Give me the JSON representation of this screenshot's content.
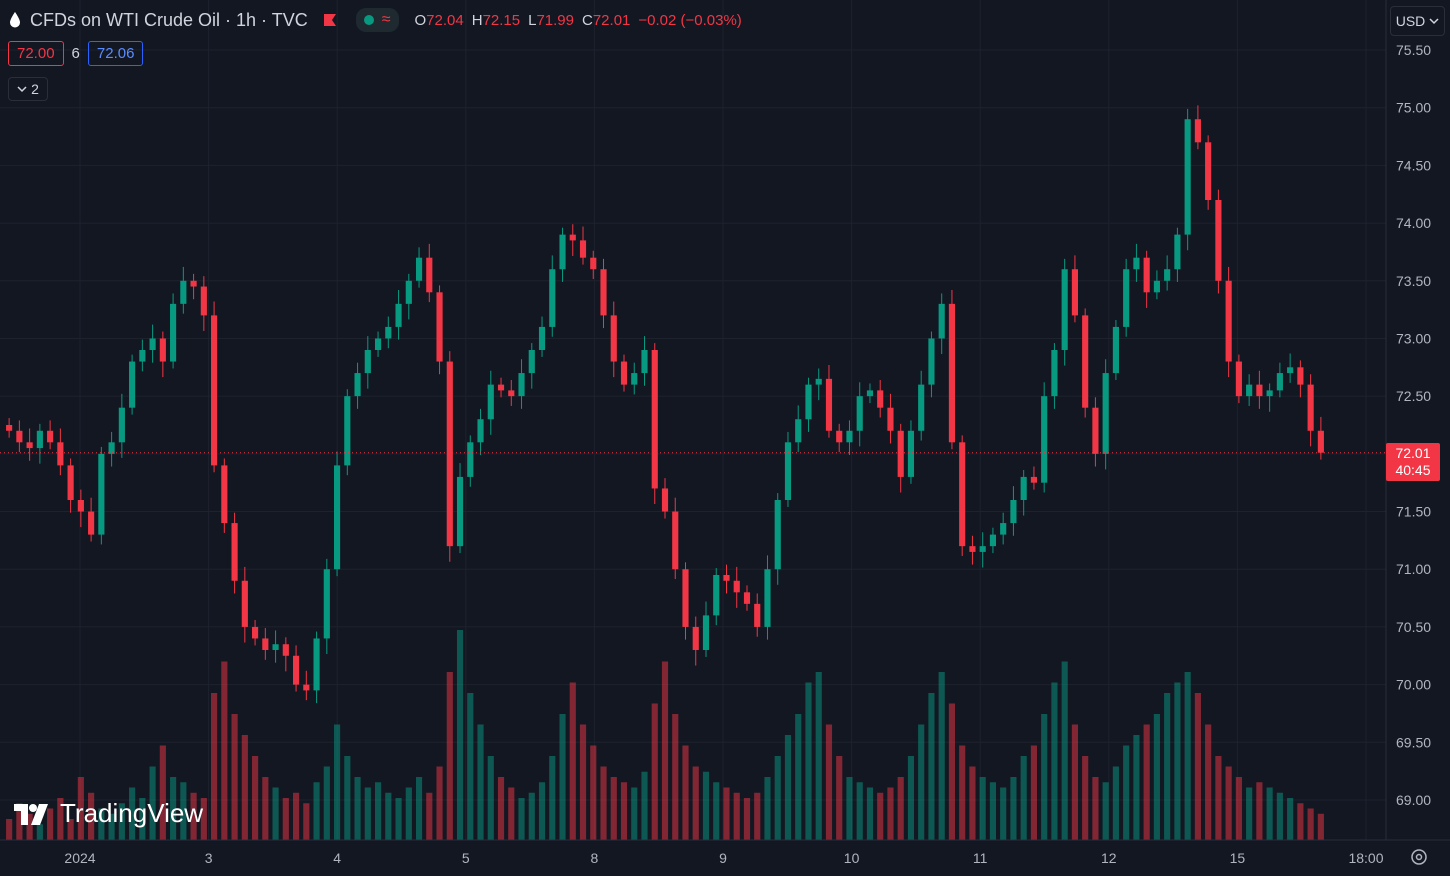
{
  "header": {
    "symbol_title": "CFDs on WTI Crude Oil · 1h · TVC",
    "ohlc": [
      {
        "k": "O",
        "v": "72.04"
      },
      {
        "k": "H",
        "v": "72.15"
      },
      {
        "k": "L",
        "v": "71.99"
      },
      {
        "k": "C",
        "v": "72.01"
      }
    ],
    "change": "−0.02 (−0.03%)",
    "wave_symbol": "≈"
  },
  "quote": {
    "bid": "72.00",
    "spread": "6",
    "ask": "72.06"
  },
  "indicators_toggle": {
    "label": "2"
  },
  "currency": {
    "label": "USD"
  },
  "last_price": {
    "price": "72.01",
    "countdown": "40:45"
  },
  "logo_text": "TradingView",
  "colors": {
    "background": "#131722",
    "up": "#089981",
    "down": "#f23645",
    "grid": "#1e222d",
    "axis_text": "#b2b5be"
  },
  "chart_data": {
    "type": "candlestick",
    "title": "CFDs on WTI Crude Oil · 1h · TVC",
    "y_axis": {
      "ticks": [
        "75.50",
        "75.00",
        "74.50",
        "74.00",
        "73.50",
        "73.00",
        "72.50",
        "72.00",
        "71.50",
        "71.00",
        "70.50",
        "70.00",
        "69.50",
        "69.00"
      ],
      "ylim": [
        68.7,
        75.6
      ],
      "position": "right"
    },
    "x_axis": {
      "ticks": [
        "2024",
        "3",
        "4",
        "5",
        "8",
        "9",
        "10",
        "11",
        "12",
        "15",
        "18:00"
      ]
    },
    "last_price": 72.01,
    "grid": true,
    "approx_close_path": [
      72.2,
      72.1,
      72.05,
      72.2,
      72.1,
      71.9,
      71.6,
      71.5,
      71.3,
      72.0,
      72.1,
      72.4,
      72.8,
      72.9,
      73.0,
      72.8,
      73.3,
      73.5,
      73.45,
      73.2,
      71.9,
      71.4,
      70.9,
      70.5,
      70.4,
      70.3,
      70.35,
      70.25,
      70.0,
      69.95,
      70.4,
      71.0,
      71.9,
      72.5,
      72.7,
      72.9,
      73.0,
      73.1,
      73.3,
      73.5,
      73.7,
      73.4,
      72.8,
      71.2,
      71.8,
      72.1,
      72.3,
      72.6,
      72.55,
      72.5,
      72.7,
      72.9,
      73.1,
      73.6,
      73.9,
      73.85,
      73.7,
      73.6,
      73.2,
      72.8,
      72.6,
      72.7,
      72.9,
      71.7,
      71.5,
      71.0,
      70.5,
      70.3,
      70.6,
      70.95,
      70.9,
      70.8,
      70.7,
      70.5,
      71.0,
      71.6,
      72.1,
      72.3,
      72.6,
      72.65,
      72.2,
      72.1,
      72.2,
      72.5,
      72.55,
      72.4,
      72.2,
      71.8,
      72.2,
      72.6,
      73.0,
      73.3,
      72.1,
      71.2,
      71.15,
      71.2,
      71.3,
      71.4,
      71.6,
      71.8,
      71.75,
      72.5,
      72.9,
      73.6,
      73.2,
      72.4,
      72.0,
      72.7,
      73.1,
      73.6,
      73.7,
      73.4,
      73.5,
      73.6,
      73.9,
      74.9,
      74.7,
      74.2,
      73.5,
      72.8,
      72.5,
      72.6,
      72.5,
      72.55,
      72.7,
      72.75,
      72.6,
      72.2,
      72.01
    ],
    "approx_volume_path": [
      20,
      35,
      25,
      15,
      30,
      40,
      20,
      60,
      45,
      30,
      25,
      35,
      50,
      40,
      70,
      90,
      60,
      55,
      45,
      40,
      140,
      170,
      120,
      100,
      80,
      60,
      50,
      40,
      45,
      35,
      55,
      70,
      110,
      80,
      60,
      50,
      55,
      45,
      40,
      50,
      60,
      45,
      70,
      160,
      200,
      140,
      110,
      80,
      60,
      50,
      40,
      45,
      55,
      80,
      120,
      150,
      110,
      90,
      70,
      60,
      55,
      50,
      65,
      130,
      170,
      120,
      90,
      70,
      65,
      55,
      50,
      45,
      40,
      45,
      60,
      80,
      100,
      120,
      150,
      160,
      110,
      80,
      60,
      55,
      50,
      45,
      50,
      60,
      80,
      110,
      140,
      160,
      130,
      90,
      70,
      60,
      55,
      50,
      60,
      80,
      90,
      120,
      150,
      170,
      110,
      80,
      60,
      55,
      70,
      90,
      100,
      110,
      120,
      140,
      150,
      160,
      140,
      110,
      80,
      70,
      60,
      50,
      55,
      50,
      45,
      40,
      35,
      30,
      25
    ]
  }
}
